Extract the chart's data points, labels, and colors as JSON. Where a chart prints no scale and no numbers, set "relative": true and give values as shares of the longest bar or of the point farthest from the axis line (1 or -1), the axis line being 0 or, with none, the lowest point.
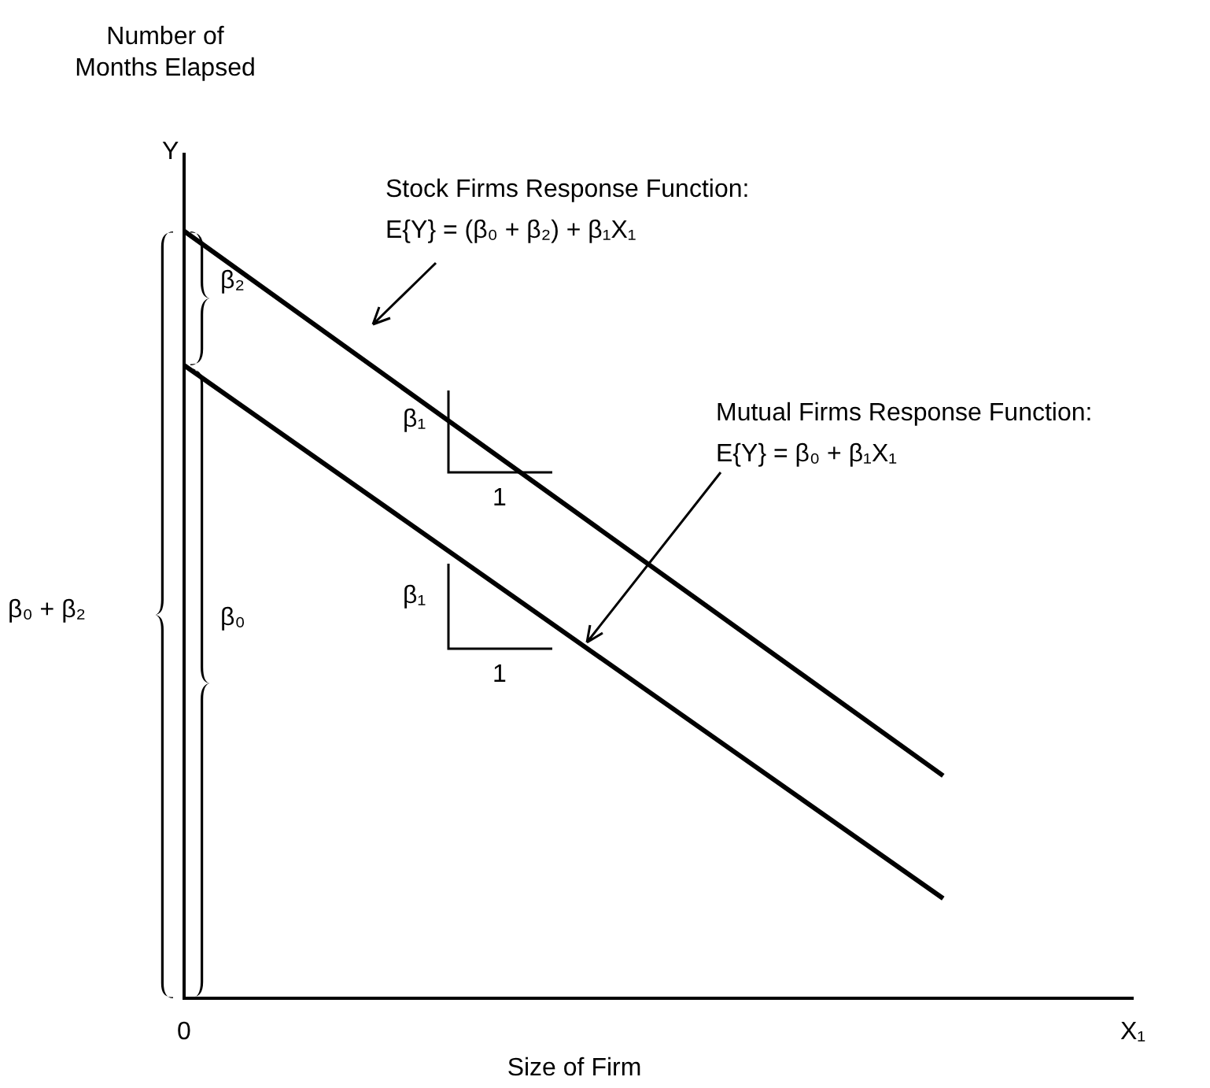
{
  "chart_data": {
    "type": "line",
    "relative": true,
    "xlabel": "Size of Firm",
    "categories": [
      "0",
      null,
      null,
      null,
      null,
      "X₁"
    ],
    "series": [
      {
        "color": "#000000",
        "values": [
          1,
          null,
          null,
          null,
          0.29,
          null
        ]
      },
      {
        "color": "#000000",
        "values": [
          0.825,
          null,
          null,
          null,
          0.13,
          null
        ]
      }
    ],
    "annotations": [
      "Number of Months Elapsed",
      "Y",
      "Stock Firms Response Function:",
      "E{Y} = (β₀ + β₂) + β₁X₁",
      "Mutual Firms Response Function:",
      "E{Y} = β₀ + β₁X₁",
      "β₂",
      "β₀",
      "β₀ + β₂",
      "β₁",
      "1",
      "β₁",
      "1"
    ],
    "grid": false,
    "line_style": "solid"
  }
}
